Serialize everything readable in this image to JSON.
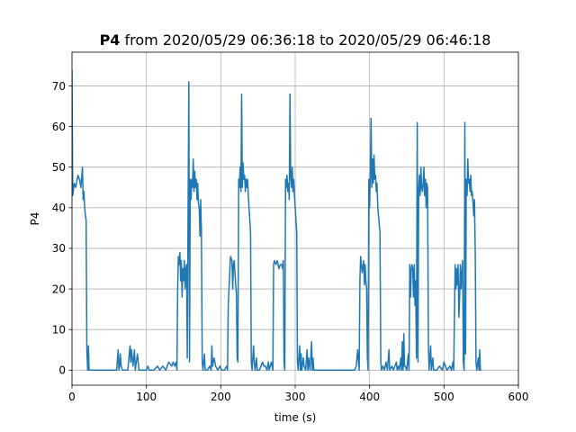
{
  "chart_data": {
    "type": "line",
    "title_bold": "P4",
    "title_rest": " from 2020/05/29 06:36:18 to 2020/05/29 06:46:18",
    "xlabel": "time (s)",
    "ylabel": "P4",
    "xlim": [
      0,
      600
    ],
    "ylim": [
      -3.7,
      78.3
    ],
    "xticks": [
      0,
      100,
      200,
      300,
      400,
      500,
      600
    ],
    "yticks": [
      0,
      10,
      20,
      30,
      40,
      50,
      60,
      70
    ],
    "grid": true,
    "colors": {
      "line": "#1f77b4",
      "grid": "#b0b0b0"
    },
    "series": [
      {
        "points": [
          [
            0,
            74
          ],
          [
            1,
            43
          ],
          [
            3,
            46
          ],
          [
            5,
            45
          ],
          [
            8,
            48
          ],
          [
            10,
            47
          ],
          [
            12,
            45
          ],
          [
            14,
            50
          ],
          [
            15,
            42
          ],
          [
            16,
            44
          ],
          [
            17,
            40
          ],
          [
            18,
            38
          ],
          [
            19,
            37
          ],
          [
            20,
            5
          ],
          [
            21,
            0
          ],
          [
            22,
            6
          ],
          [
            23,
            0
          ],
          [
            24,
            0
          ],
          [
            30,
            0
          ],
          [
            40,
            0
          ],
          [
            50,
            0
          ],
          [
            60,
            0
          ],
          [
            62,
            5
          ],
          [
            63,
            0
          ],
          [
            64,
            1
          ],
          [
            65,
            4
          ],
          [
            66,
            1
          ],
          [
            68,
            0
          ],
          [
            72,
            0
          ],
          [
            75,
            0
          ],
          [
            78,
            6
          ],
          [
            79,
            2
          ],
          [
            80,
            5
          ],
          [
            82,
            1
          ],
          [
            84,
            5
          ],
          [
            85,
            0
          ],
          [
            88,
            4
          ],
          [
            90,
            0
          ],
          [
            95,
            0
          ],
          [
            100,
            0
          ],
          [
            102,
            1
          ],
          [
            104,
            0
          ],
          [
            110,
            0
          ],
          [
            115,
            1
          ],
          [
            118,
            0
          ],
          [
            122,
            1
          ],
          [
            126,
            0
          ],
          [
            130,
            2
          ],
          [
            134,
            1
          ],
          [
            136,
            2
          ],
          [
            138,
            1
          ],
          [
            140,
            2
          ],
          [
            141,
            0
          ],
          [
            142,
            20
          ],
          [
            143,
            28
          ],
          [
            144,
            26
          ],
          [
            145,
            29
          ],
          [
            146,
            22
          ],
          [
            147,
            27
          ],
          [
            148,
            18
          ],
          [
            149,
            25
          ],
          [
            150,
            22
          ],
          [
            151,
            27
          ],
          [
            152,
            20
          ],
          [
            153,
            25
          ],
          [
            154,
            26
          ],
          [
            155,
            3
          ],
          [
            156,
            40
          ],
          [
            157,
            71
          ],
          [
            158,
            2
          ],
          [
            159,
            47
          ],
          [
            160,
            42
          ],
          [
            161,
            47
          ],
          [
            162,
            45
          ],
          [
            163,
            52
          ],
          [
            164,
            44
          ],
          [
            165,
            49
          ],
          [
            166,
            45
          ],
          [
            167,
            47
          ],
          [
            168,
            42
          ],
          [
            169,
            46
          ],
          [
            170,
            41
          ],
          [
            171,
            40
          ],
          [
            172,
            33
          ],
          [
            173,
            42
          ],
          [
            174,
            34
          ],
          [
            175,
            2
          ],
          [
            176,
            0
          ],
          [
            178,
            4
          ],
          [
            179,
            0
          ],
          [
            182,
            0
          ],
          [
            185,
            1
          ],
          [
            187,
            0
          ],
          [
            188,
            6
          ],
          [
            189,
            1
          ],
          [
            191,
            3
          ],
          [
            193,
            1
          ],
          [
            196,
            0
          ],
          [
            199,
            1
          ],
          [
            201,
            0
          ],
          [
            205,
            0
          ],
          [
            208,
            1
          ],
          [
            209,
            0
          ],
          [
            210,
            16
          ],
          [
            212,
            24
          ],
          [
            213,
            28
          ],
          [
            215,
            27
          ],
          [
            216,
            20
          ],
          [
            217,
            26
          ],
          [
            218,
            27
          ],
          [
            220,
            21
          ],
          [
            221,
            19
          ],
          [
            222,
            3
          ],
          [
            223,
            2
          ],
          [
            224,
            47
          ],
          [
            225,
            45
          ],
          [
            226,
            50
          ],
          [
            227,
            44
          ],
          [
            228,
            68
          ],
          [
            229,
            45
          ],
          [
            230,
            51
          ],
          [
            231,
            47
          ],
          [
            232,
            48
          ],
          [
            233,
            44
          ],
          [
            234,
            47
          ],
          [
            235,
            45
          ],
          [
            236,
            47
          ],
          [
            237,
            43
          ],
          [
            238,
            40
          ],
          [
            240,
            34
          ],
          [
            241,
            2
          ],
          [
            242,
            0
          ],
          [
            244,
            6
          ],
          [
            245,
            2
          ],
          [
            246,
            0
          ],
          [
            248,
            3
          ],
          [
            249,
            0
          ],
          [
            252,
            0
          ],
          [
            254,
            1
          ],
          [
            256,
            2
          ],
          [
            258,
            1
          ],
          [
            260,
            1
          ],
          [
            262,
            0
          ],
          [
            264,
            2
          ],
          [
            265,
            0
          ],
          [
            268,
            2
          ],
          [
            270,
            0
          ],
          [
            271,
            26
          ],
          [
            272,
            27
          ],
          [
            274,
            26
          ],
          [
            276,
            27
          ],
          [
            278,
            25
          ],
          [
            280,
            26
          ],
          [
            282,
            26
          ],
          [
            283,
            25
          ],
          [
            284,
            27
          ],
          [
            285,
            2
          ],
          [
            286,
            0
          ],
          [
            287,
            47
          ],
          [
            288,
            45
          ],
          [
            289,
            48
          ],
          [
            290,
            44
          ],
          [
            291,
            46
          ],
          [
            292,
            42
          ],
          [
            293,
            68
          ],
          [
            294,
            48
          ],
          [
            295,
            45
          ],
          [
            296,
            50
          ],
          [
            297,
            44
          ],
          [
            298,
            47
          ],
          [
            299,
            43
          ],
          [
            300,
            40
          ],
          [
            302,
            34
          ],
          [
            303,
            2
          ],
          [
            304,
            0
          ],
          [
            306,
            6
          ],
          [
            307,
            0
          ],
          [
            308,
            4
          ],
          [
            309,
            0
          ],
          [
            311,
            3
          ],
          [
            312,
            1
          ],
          [
            314,
            0
          ],
          [
            316,
            5
          ],
          [
            317,
            0
          ],
          [
            318,
            3
          ],
          [
            320,
            0
          ],
          [
            322,
            7
          ],
          [
            323,
            0
          ],
          [
            324,
            3
          ],
          [
            325,
            0
          ],
          [
            330,
            0
          ],
          [
            340,
            0
          ],
          [
            350,
            0
          ],
          [
            360,
            0
          ],
          [
            370,
            0
          ],
          [
            380,
            0
          ],
          [
            382,
            1
          ],
          [
            384,
            5
          ],
          [
            385,
            2
          ],
          [
            386,
            0
          ],
          [
            387,
            22
          ],
          [
            388,
            28
          ],
          [
            390,
            24
          ],
          [
            392,
            27
          ],
          [
            393,
            21
          ],
          [
            394,
            26
          ],
          [
            395,
            22
          ],
          [
            396,
            20
          ],
          [
            397,
            3
          ],
          [
            398,
            0
          ],
          [
            399,
            47
          ],
          [
            400,
            40
          ],
          [
            401,
            49
          ],
          [
            402,
            62
          ],
          [
            403,
            45
          ],
          [
            404,
            52
          ],
          [
            405,
            46
          ],
          [
            406,
            53
          ],
          [
            407,
            47
          ],
          [
            408,
            48
          ],
          [
            409,
            44
          ],
          [
            410,
            46
          ],
          [
            411,
            40
          ],
          [
            412,
            38
          ],
          [
            413,
            36
          ],
          [
            414,
            34
          ],
          [
            415,
            2
          ],
          [
            416,
            0
          ],
          [
            418,
            1
          ],
          [
            420,
            0
          ],
          [
            422,
            2
          ],
          [
            424,
            0
          ],
          [
            426,
            5
          ],
          [
            427,
            0
          ],
          [
            430,
            1
          ],
          [
            432,
            0
          ],
          [
            436,
            2
          ],
          [
            437,
            0
          ],
          [
            439,
            1
          ],
          [
            440,
            0
          ],
          [
            442,
            3
          ],
          [
            443,
            0
          ],
          [
            444,
            7
          ],
          [
            445,
            0
          ],
          [
            446,
            9
          ],
          [
            447,
            1
          ],
          [
            448,
            1
          ],
          [
            450,
            0
          ],
          [
            452,
            4
          ],
          [
            453,
            0
          ],
          [
            454,
            26
          ],
          [
            455,
            18
          ],
          [
            456,
            25
          ],
          [
            457,
            26
          ],
          [
            458,
            25
          ],
          [
            459,
            18
          ],
          [
            460,
            26
          ],
          [
            461,
            16
          ],
          [
            462,
            22
          ],
          [
            463,
            3
          ],
          [
            464,
            61
          ],
          [
            465,
            2
          ],
          [
            466,
            44
          ],
          [
            467,
            48
          ],
          [
            468,
            43
          ],
          [
            469,
            50
          ],
          [
            470,
            45
          ],
          [
            471,
            44
          ],
          [
            472,
            46
          ],
          [
            473,
            50
          ],
          [
            474,
            43
          ],
          [
            475,
            47
          ],
          [
            476,
            40
          ],
          [
            477,
            46
          ],
          [
            478,
            45
          ],
          [
            479,
            6
          ],
          [
            480,
            0
          ],
          [
            482,
            6
          ],
          [
            483,
            0
          ],
          [
            485,
            3
          ],
          [
            486,
            0
          ],
          [
            490,
            0
          ],
          [
            494,
            1
          ],
          [
            498,
            0
          ],
          [
            500,
            2
          ],
          [
            502,
            1
          ],
          [
            504,
            0
          ],
          [
            508,
            1
          ],
          [
            510,
            0
          ],
          [
            512,
            2
          ],
          [
            513,
            0
          ],
          [
            515,
            26
          ],
          [
            516,
            20
          ],
          [
            517,
            25
          ],
          [
            518,
            21
          ],
          [
            519,
            26
          ],
          [
            520,
            13
          ],
          [
            521,
            18
          ],
          [
            522,
            26
          ],
          [
            523,
            20
          ],
          [
            524,
            24
          ],
          [
            525,
            27
          ],
          [
            526,
            2
          ],
          [
            527,
            0
          ],
          [
            528,
            61
          ],
          [
            529,
            4
          ],
          [
            530,
            47
          ],
          [
            531,
            43
          ],
          [
            532,
            52
          ],
          [
            533,
            46
          ],
          [
            534,
            47
          ],
          [
            535,
            44
          ],
          [
            536,
            48
          ],
          [
            537,
            43
          ],
          [
            538,
            44
          ],
          [
            539,
            41
          ],
          [
            540,
            38
          ],
          [
            541,
            42
          ],
          [
            542,
            28
          ],
          [
            543,
            2
          ],
          [
            544,
            0
          ],
          [
            546,
            3
          ],
          [
            547,
            0
          ],
          [
            548,
            5
          ],
          [
            549,
            0
          ],
          [
            550,
            0
          ]
        ]
      }
    ]
  }
}
